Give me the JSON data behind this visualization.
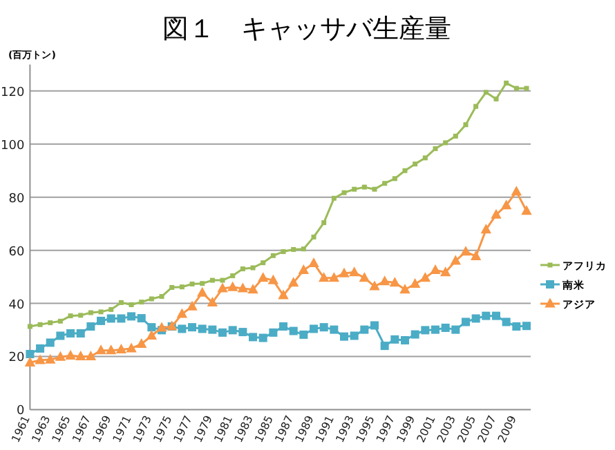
{
  "chart_data": {
    "type": "line",
    "title": "図１　キャッサバ生産量",
    "ylabel": "(百万トン)",
    "categories": [
      "1961",
      null,
      "1963",
      null,
      "1965",
      null,
      "1967",
      null,
      "1969",
      null,
      "1971",
      null,
      "1973",
      null,
      "1975",
      null,
      "1977",
      null,
      "1979",
      null,
      "1981",
      null,
      "1983",
      null,
      "1985",
      null,
      "1987",
      null,
      "1989",
      null,
      "1991",
      null,
      "1993",
      null,
      "1995",
      null,
      "1997",
      null,
      "1999",
      null,
      "2001",
      null,
      "2003",
      null,
      "2005",
      null,
      "2007",
      null,
      "2009",
      null
    ],
    "series": [
      {
        "name": "アフリカ",
        "color": "#9bbb59",
        "marker": "square",
        "values": [
          31.3,
          32,
          32.7,
          33.3,
          35.3,
          35.5,
          36.5,
          36.8,
          37.7,
          40.3,
          39.5,
          40.5,
          41.7,
          42.6,
          46,
          46.2,
          47.3,
          47.5,
          48.7,
          48.7,
          50.4,
          53,
          53.4,
          55.3,
          58,
          59.5,
          60.3,
          60.5,
          65,
          70.4,
          79.6,
          81.7,
          83,
          83.8,
          83,
          85.2,
          87,
          90,
          92.5,
          94.8,
          98.3,
          100.5,
          103,
          107.3,
          114.2,
          119.5,
          117,
          123,
          121,
          121
        ]
      },
      {
        "name": "南米",
        "color": "#4bacc6",
        "marker": "square",
        "values": [
          20.9,
          23,
          25.2,
          27.8,
          28.7,
          28.7,
          31.3,
          33.4,
          34.3,
          34.3,
          35.1,
          34.4,
          31,
          29.9,
          31.3,
          30.4,
          31,
          30.4,
          30.1,
          29,
          29.9,
          29.2,
          27.3,
          27,
          29,
          31.3,
          29.6,
          28.2,
          30.4,
          31,
          30.1,
          27.5,
          27.8,
          30.1,
          31.7,
          24,
          26.4,
          26.1,
          28.3,
          29.9,
          30.1,
          30.8,
          30.1,
          33,
          34.3,
          35.3,
          35.3,
          33,
          31.3,
          31.5
        ]
      },
      {
        "name": "アジア",
        "color": "#f79646",
        "marker": "triangle",
        "values": [
          17.7,
          18.6,
          18.8,
          19.8,
          20.3,
          20,
          20,
          22.3,
          22.3,
          22.6,
          23,
          24.7,
          27.8,
          30.8,
          31.3,
          36,
          38.8,
          44,
          40.3,
          45.6,
          46.1,
          45.6,
          45.2,
          49.6,
          48.7,
          43,
          47.8,
          52.5,
          55.1,
          49.6,
          49.6,
          51.3,
          51.7,
          49.6,
          46.4,
          48.3,
          47.8,
          45.2,
          47.3,
          49.6,
          52.5,
          51.7,
          56,
          59.5,
          57.7,
          67.8,
          73.4,
          76.9,
          82.1,
          74.8
        ]
      }
    ],
    "ylim": [
      0,
      130
    ],
    "yticks": [
      0,
      20,
      40,
      60,
      80,
      100,
      120
    ],
    "grid": "y",
    "legend": "right"
  }
}
